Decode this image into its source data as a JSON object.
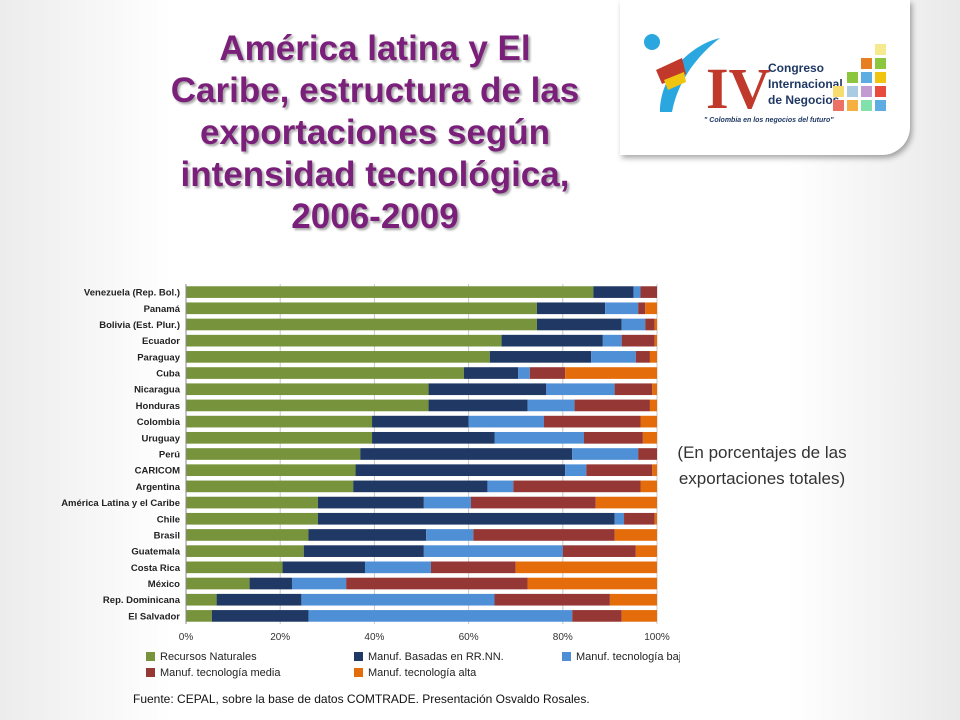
{
  "slide": {
    "title_lines": [
      "América latina y El",
      "Caribe, estructura de las",
      "exportaciones según",
      "intensidad tecnológica,",
      "2006-2009"
    ],
    "unit_note": "(En porcentajes de las exportaciones totales)",
    "source": "Fuente: CEPAL, sobre la base de datos COMTRADE.  Presentación Osvaldo Rosales."
  },
  "logo": {
    "numeral": "IV",
    "lines": [
      "Congreso",
      "Internacional",
      "de Negocios"
    ],
    "tagline": "\" Colombia en los negocios del futuro\""
  },
  "chart_data": {
    "type": "bar",
    "orientation": "horizontal",
    "stacked": true,
    "categories": [
      "Venezuela (Rep. Bol.)",
      "Panamá",
      "Bolivia (Est. Plur.)",
      "Ecuador",
      "Paraguay",
      "Cuba",
      "Nicaragua",
      "Honduras",
      "Colombia",
      "Uruguay",
      "Perú",
      "CARICOM",
      "Argentina",
      "América Latina y el Caribe",
      "Chile",
      "Brasil",
      "Guatemala",
      "Costa Rica",
      "México",
      "Rep. Dominicana",
      "El Salvador"
    ],
    "series": [
      {
        "name": "Recursos Naturales",
        "color": "#77933c",
        "values": [
          86.5,
          74.5,
          74.5,
          67,
          64.5,
          59,
          51.5,
          51.5,
          39.5,
          39.5,
          37,
          36,
          35.5,
          28,
          28,
          26,
          25,
          20.5,
          13.5,
          6.5,
          5.5
        ]
      },
      {
        "name": "Manuf. Basadas en RR.NN.",
        "color": "#1f3864",
        "values": [
          8.5,
          14.5,
          18,
          21.5,
          21.5,
          11.5,
          25,
          21,
          20.5,
          26,
          45,
          44.5,
          28.5,
          22.5,
          63,
          25,
          25.5,
          17.5,
          9,
          18,
          20.5
        ]
      },
      {
        "name": "Manuf.  tecnología baja",
        "color": "#4f8fd6",
        "values": [
          1.5,
          7,
          5,
          4,
          9.5,
          2.5,
          14.5,
          10,
          16,
          19,
          14,
          4.5,
          5.5,
          10,
          2,
          10,
          29.5,
          14,
          11.5,
          41,
          56
        ]
      },
      {
        "name": "Manuf.  tecnología media",
        "color": "#953735",
        "values": [
          3.5,
          1.5,
          2,
          7,
          3,
          7.5,
          8,
          16,
          20.5,
          12.5,
          4,
          14,
          27,
          26.5,
          6.5,
          30,
          15.5,
          18,
          38.5,
          24.5,
          10.5
        ]
      },
      {
        "name": "Manuf. tecnología alta",
        "color": "#e46c0a",
        "values": [
          0,
          2.5,
          0.5,
          0.5,
          1.5,
          19.5,
          1,
          1.5,
          3.5,
          3,
          0,
          1,
          3.5,
          13,
          0.5,
          9,
          4.5,
          30,
          27.5,
          10,
          7.5
        ]
      }
    ],
    "xlim": [
      0,
      100
    ],
    "x_ticks": [
      "0%",
      "20%",
      "40%",
      "60%",
      "80%",
      "100%"
    ],
    "grid": true,
    "legend_position": "bottom"
  }
}
